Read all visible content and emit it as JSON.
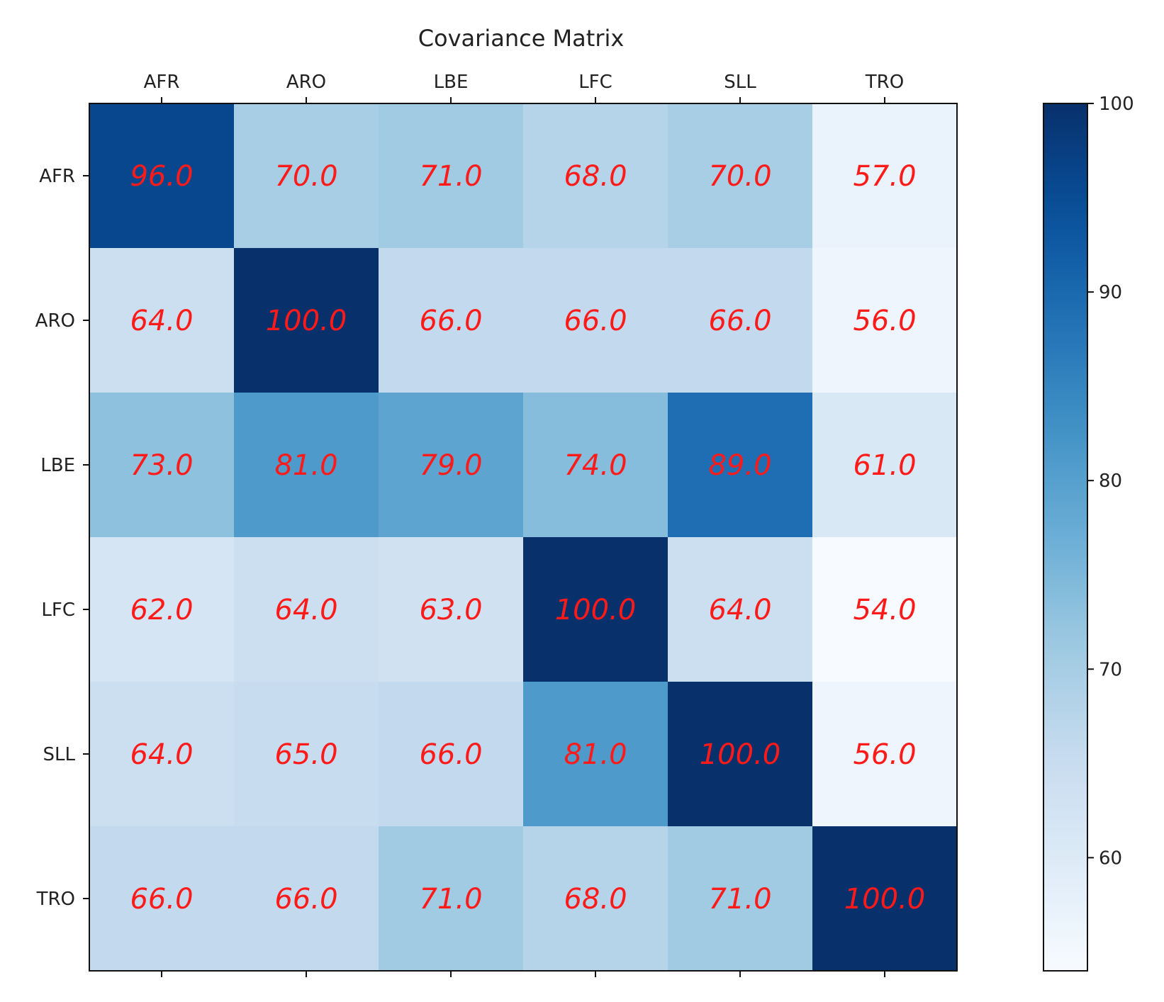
{
  "chart_data": {
    "type": "heatmap",
    "title": "Covariance Matrix",
    "x_labels": [
      "AFR",
      "ARO",
      "LBE",
      "LFC",
      "SLL",
      "TRO"
    ],
    "y_labels": [
      "AFR",
      "ARO",
      "LBE",
      "LFC",
      "SLL",
      "TRO"
    ],
    "values": [
      [
        96.0,
        70.0,
        71.0,
        68.0,
        70.0,
        57.0
      ],
      [
        64.0,
        100.0,
        66.0,
        66.0,
        66.0,
        56.0
      ],
      [
        73.0,
        81.0,
        79.0,
        74.0,
        89.0,
        61.0
      ],
      [
        62.0,
        64.0,
        63.0,
        100.0,
        64.0,
        54.0
      ],
      [
        64.0,
        65.0,
        66.0,
        81.0,
        100.0,
        56.0
      ],
      [
        66.0,
        66.0,
        71.0,
        68.0,
        71.0,
        100.0
      ]
    ],
    "value_labels": [
      [
        "96.0",
        "70.0",
        "71.0",
        "68.0",
        "70.0",
        "57.0"
      ],
      [
        "64.0",
        "100.0",
        "66.0",
        "66.0",
        "66.0",
        "56.0"
      ],
      [
        "73.0",
        "81.0",
        "79.0",
        "74.0",
        "89.0",
        "61.0"
      ],
      [
        "62.0",
        "64.0",
        "63.0",
        "100.0",
        "64.0",
        "54.0"
      ],
      [
        "64.0",
        "65.0",
        "66.0",
        "81.0",
        "100.0",
        "56.0"
      ],
      [
        "66.0",
        "66.0",
        "71.0",
        "68.0",
        "71.0",
        "100.0"
      ]
    ],
    "colormap": "Blues",
    "colorbar": {
      "range": [
        54,
        100
      ],
      "ticks": [
        60,
        70,
        80,
        90,
        100
      ],
      "tick_labels": [
        "60",
        "70",
        "80",
        "90",
        "100"
      ]
    },
    "label_color": "#ff1a1a",
    "x_axis_position": "top"
  }
}
